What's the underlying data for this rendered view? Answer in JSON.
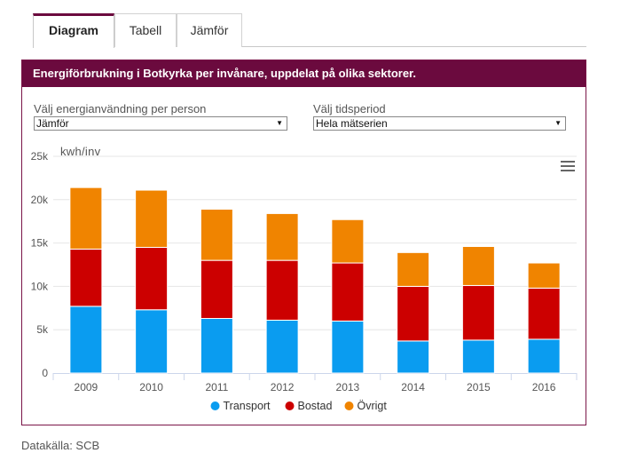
{
  "tabs": [
    {
      "label": "Diagram"
    },
    {
      "label": "Tabell"
    },
    {
      "label": "Jämför"
    }
  ],
  "panel": {
    "title": "Energiförbrukning i Botkyrka per invånare, uppdelat på olika sektorer."
  },
  "controls": {
    "energy_label": "Välj energianvändning per person",
    "energy_value": "Jämför",
    "period_label": "Välj tidsperiod",
    "period_value": "Hela mätserien"
  },
  "source": "Datakälla: SCB",
  "chart_data": {
    "type": "bar",
    "stacked": true,
    "ylabel": "kwh/inv",
    "ylim": [
      0,
      25000
    ],
    "yticks": [
      {
        "value": 0,
        "label": "0"
      },
      {
        "value": 5000,
        "label": "5k"
      },
      {
        "value": 10000,
        "label": "10k"
      },
      {
        "value": 15000,
        "label": "15k"
      },
      {
        "value": 20000,
        "label": "20k"
      },
      {
        "value": 25000,
        "label": "25k"
      }
    ],
    "categories": [
      "2009",
      "2010",
      "2011",
      "2012",
      "2013",
      "2014",
      "2015",
      "2016"
    ],
    "series": [
      {
        "name": "Transport",
        "color": "#0a9cf0",
        "values": [
          7700,
          7300,
          6300,
          6100,
          6000,
          3700,
          3800,
          3900
        ]
      },
      {
        "name": "Bostad",
        "color": "#cc0000",
        "values": [
          6600,
          7200,
          6700,
          6900,
          6700,
          6300,
          6300,
          5900
        ]
      },
      {
        "name": "Övrigt",
        "color": "#f08400",
        "values": [
          7100,
          6600,
          5900,
          5400,
          5000,
          3900,
          4500,
          2900
        ]
      }
    ],
    "legend_position": "bottom"
  }
}
